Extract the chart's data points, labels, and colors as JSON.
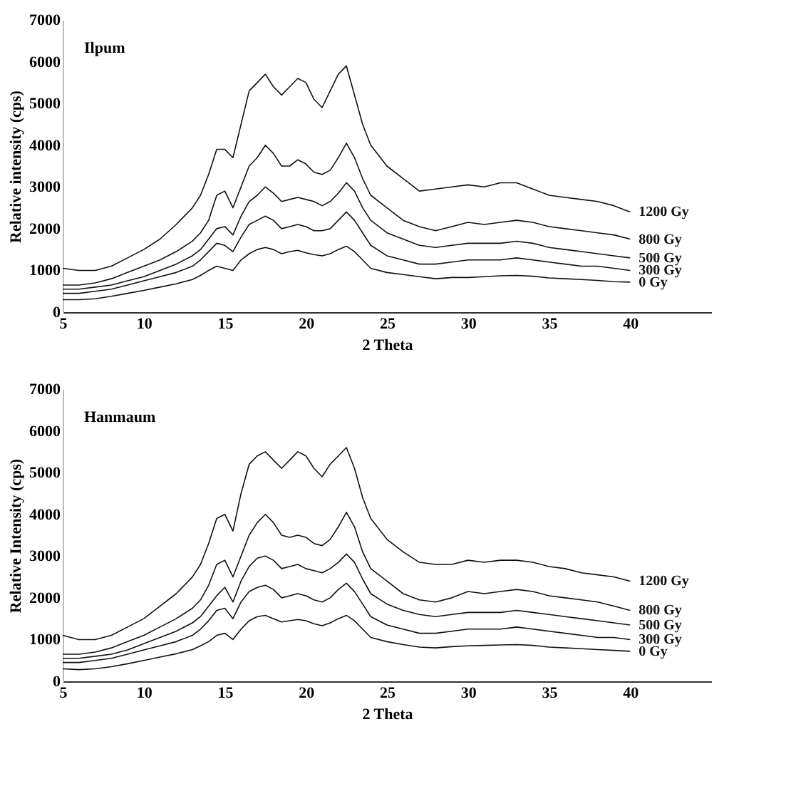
{
  "chart_data": [
    {
      "type": "line",
      "title": "Ilpum",
      "xlabel": "2 Theta",
      "ylabel": "Relative intensity (cps)",
      "xlim": [
        5,
        45
      ],
      "xticks": [
        5,
        10,
        15,
        20,
        25,
        30,
        35,
        40
      ],
      "ylim": [
        0,
        7000
      ],
      "yticks": [
        0,
        1000,
        2000,
        3000,
        4000,
        5000,
        6000,
        7000
      ],
      "grid": false,
      "marker": "none",
      "line_style": "solid",
      "x": [
        5,
        6,
        7,
        8,
        9,
        10,
        11,
        12,
        13,
        13.5,
        14,
        14.5,
        15,
        15.5,
        16,
        16.5,
        17,
        17.5,
        18,
        18.5,
        19,
        19.5,
        20,
        20.5,
        21,
        21.5,
        22,
        22.5,
        23,
        23.5,
        24,
        25,
        26,
        27,
        28,
        29,
        30,
        31,
        32,
        33,
        34,
        35,
        36,
        37,
        38,
        39,
        40
      ],
      "series": [
        {
          "name": "1200 Gy",
          "color": "#111111",
          "values": [
            1050,
            1000,
            1000,
            1100,
            1300,
            1500,
            1750,
            2100,
            2500,
            2800,
            3300,
            3900,
            3900,
            3700,
            4500,
            5300,
            5500,
            5700,
            5400,
            5200,
            5400,
            5600,
            5500,
            5100,
            4900,
            5300,
            5700,
            5900,
            5200,
            4500,
            4000,
            3500,
            3200,
            2900,
            2950,
            3000,
            3050,
            3000,
            3100,
            3100,
            2950,
            2800,
            2750,
            2700,
            2650,
            2550,
            2400
          ]
        },
        {
          "name": "800 Gy",
          "color": "#111111",
          "values": [
            650,
            650,
            700,
            800,
            950,
            1100,
            1250,
            1450,
            1700,
            1900,
            2200,
            2800,
            2900,
            2500,
            3000,
            3500,
            3700,
            4000,
            3800,
            3500,
            3500,
            3650,
            3550,
            3350,
            3300,
            3400,
            3700,
            4050,
            3700,
            3200,
            2800,
            2500,
            2200,
            2050,
            1950,
            2050,
            2150,
            2100,
            2150,
            2200,
            2150,
            2050,
            2000,
            1950,
            1900,
            1850,
            1750
          ]
        },
        {
          "name": "500 Gy",
          "color": "#111111",
          "values": [
            550,
            550,
            600,
            650,
            750,
            850,
            1000,
            1150,
            1350,
            1500,
            1750,
            2000,
            2050,
            1850,
            2300,
            2650,
            2800,
            3000,
            2850,
            2650,
            2700,
            2750,
            2700,
            2650,
            2550,
            2650,
            2850,
            3100,
            2900,
            2500,
            2200,
            1900,
            1750,
            1600,
            1550,
            1600,
            1650,
            1650,
            1650,
            1700,
            1650,
            1550,
            1500,
            1450,
            1400,
            1350,
            1300
          ]
        },
        {
          "name": "300 Gy",
          "color": "#111111",
          "values": [
            450,
            450,
            500,
            550,
            650,
            750,
            850,
            950,
            1100,
            1250,
            1450,
            1650,
            1600,
            1450,
            1800,
            2100,
            2200,
            2300,
            2200,
            2000,
            2050,
            2100,
            2050,
            1950,
            1950,
            2000,
            2200,
            2400,
            2200,
            1900,
            1600,
            1350,
            1250,
            1150,
            1150,
            1200,
            1250,
            1250,
            1250,
            1300,
            1250,
            1200,
            1150,
            1100,
            1100,
            1050,
            1000
          ]
        },
        {
          "name": "0 Gy",
          "color": "#111111",
          "values": [
            300,
            300,
            320,
            380,
            450,
            520,
            600,
            680,
            780,
            880,
            1000,
            1100,
            1050,
            1000,
            1250,
            1400,
            1500,
            1550,
            1500,
            1400,
            1450,
            1480,
            1420,
            1380,
            1350,
            1400,
            1500,
            1580,
            1450,
            1250,
            1050,
            950,
            900,
            850,
            800,
            830,
            830,
            850,
            870,
            880,
            860,
            820,
            800,
            780,
            760,
            730,
            720
          ]
        }
      ]
    },
    {
      "type": "line",
      "title": "Hanmaum",
      "xlabel": "2 Theta",
      "ylabel": "Relative Intensity (cps)",
      "xlim": [
        5,
        45
      ],
      "xticks": [
        5,
        10,
        15,
        20,
        25,
        30,
        35,
        40
      ],
      "ylim": [
        0,
        7000
      ],
      "yticks": [
        0,
        1000,
        2000,
        3000,
        4000,
        5000,
        6000,
        7000
      ],
      "grid": false,
      "marker": "none",
      "line_style": "solid",
      "x": [
        5,
        6,
        7,
        8,
        9,
        10,
        11,
        12,
        13,
        13.5,
        14,
        14.5,
        15,
        15.5,
        16,
        16.5,
        17,
        17.5,
        18,
        18.5,
        19,
        19.5,
        20,
        20.5,
        21,
        21.5,
        22,
        22.5,
        23,
        23.5,
        24,
        25,
        26,
        27,
        28,
        29,
        30,
        31,
        32,
        33,
        34,
        35,
        36,
        37,
        38,
        39,
        40
      ],
      "series": [
        {
          "name": "1200 Gy",
          "color": "#111111",
          "values": [
            1100,
            1000,
            1000,
            1100,
            1300,
            1500,
            1800,
            2100,
            2500,
            2800,
            3300,
            3900,
            4000,
            3600,
            4500,
            5200,
            5400,
            5500,
            5300,
            5100,
            5300,
            5500,
            5400,
            5100,
            4900,
            5200,
            5400,
            5600,
            5100,
            4400,
            3900,
            3400,
            3100,
            2850,
            2800,
            2800,
            2900,
            2850,
            2900,
            2900,
            2850,
            2750,
            2700,
            2600,
            2550,
            2500,
            2400
          ]
        },
        {
          "name": "800 Gy",
          "color": "#111111",
          "values": [
            650,
            650,
            700,
            800,
            950,
            1100,
            1300,
            1500,
            1750,
            1950,
            2300,
            2800,
            2900,
            2500,
            3000,
            3500,
            3800,
            4000,
            3800,
            3500,
            3450,
            3500,
            3450,
            3300,
            3250,
            3400,
            3700,
            4050,
            3700,
            3100,
            2700,
            2400,
            2100,
            1950,
            1900,
            2000,
            2150,
            2100,
            2150,
            2200,
            2150,
            2050,
            2000,
            1950,
            1900,
            1800,
            1700
          ]
        },
        {
          "name": "500 Gy",
          "color": "#111111",
          "values": [
            550,
            550,
            600,
            650,
            750,
            900,
            1050,
            1200,
            1400,
            1550,
            1800,
            2050,
            2250,
            1900,
            2400,
            2750,
            2950,
            3000,
            2900,
            2700,
            2750,
            2800,
            2700,
            2650,
            2600,
            2700,
            2850,
            3050,
            2850,
            2450,
            2100,
            1850,
            1700,
            1600,
            1550,
            1600,
            1650,
            1650,
            1650,
            1700,
            1650,
            1600,
            1550,
            1500,
            1450,
            1400,
            1350
          ]
        },
        {
          "name": "300 Gy",
          "color": "#111111",
          "values": [
            450,
            450,
            500,
            550,
            650,
            750,
            850,
            950,
            1100,
            1250,
            1450,
            1700,
            1750,
            1500,
            1900,
            2150,
            2250,
            2300,
            2200,
            2000,
            2050,
            2100,
            2050,
            1950,
            1900,
            2000,
            2200,
            2350,
            2150,
            1850,
            1550,
            1350,
            1250,
            1150,
            1150,
            1200,
            1250,
            1250,
            1250,
            1300,
            1250,
            1200,
            1150,
            1100,
            1050,
            1050,
            1000
          ]
        },
        {
          "name": "0 Gy",
          "color": "#111111",
          "values": [
            300,
            280,
            300,
            350,
            420,
            500,
            580,
            660,
            760,
            850,
            950,
            1100,
            1150,
            1000,
            1250,
            1450,
            1550,
            1580,
            1500,
            1420,
            1450,
            1480,
            1450,
            1380,
            1330,
            1400,
            1500,
            1580,
            1450,
            1250,
            1050,
            950,
            880,
            820,
            800,
            830,
            850,
            860,
            870,
            880,
            860,
            820,
            800,
            780,
            760,
            740,
            720
          ]
        }
      ]
    }
  ]
}
